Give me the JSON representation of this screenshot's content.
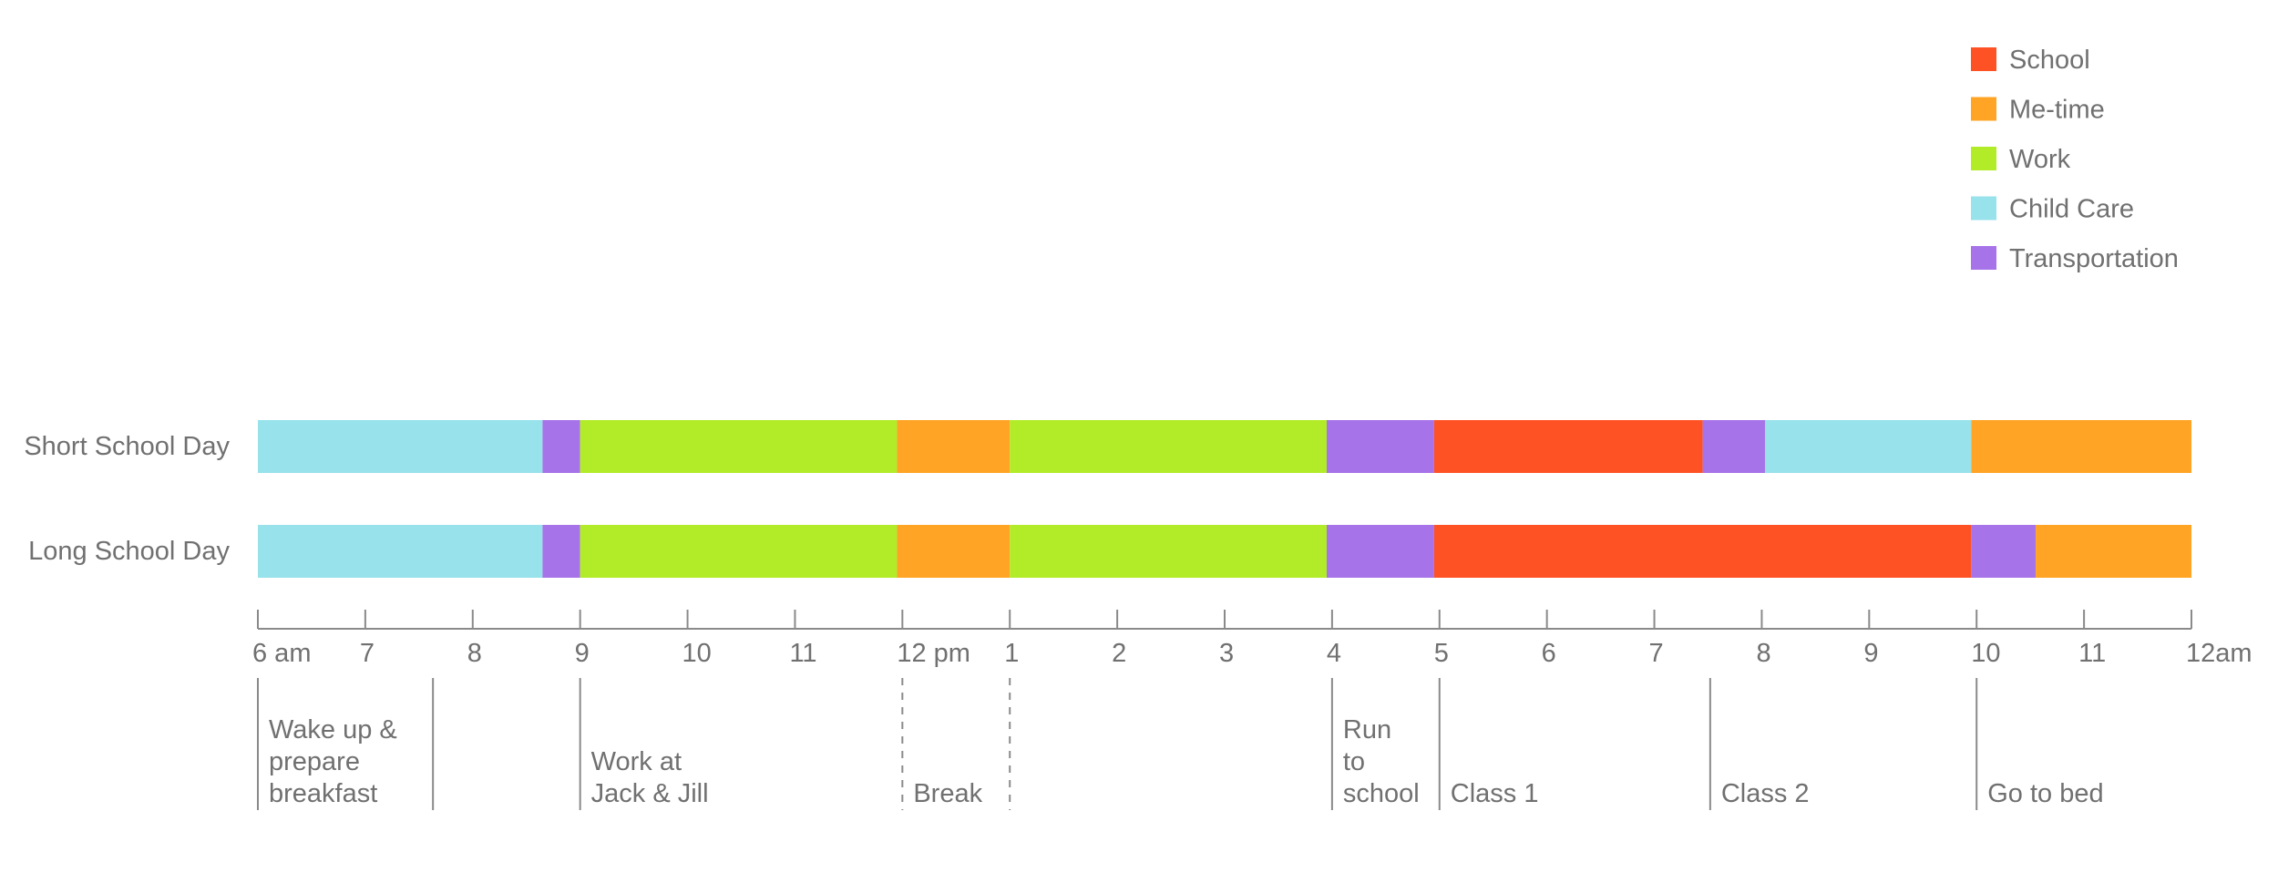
{
  "chart_data": {
    "type": "bar",
    "subtype": "stacked-timeline",
    "title": "",
    "xlabel": "",
    "ylabel": "",
    "x_unit": "hours (clock time)",
    "xlim": [
      6,
      24
    ],
    "ticks": [
      {
        "value": 6,
        "label": "6 am"
      },
      {
        "value": 7,
        "label": "7"
      },
      {
        "value": 8,
        "label": "8"
      },
      {
        "value": 9,
        "label": "9"
      },
      {
        "value": 10,
        "label": "10"
      },
      {
        "value": 11,
        "label": "11"
      },
      {
        "value": 12,
        "label": "12 pm"
      },
      {
        "value": 13,
        "label": "1"
      },
      {
        "value": 14,
        "label": "2"
      },
      {
        "value": 15,
        "label": "3"
      },
      {
        "value": 16,
        "label": "4"
      },
      {
        "value": 17,
        "label": "5"
      },
      {
        "value": 18,
        "label": "6"
      },
      {
        "value": 19,
        "label": "7"
      },
      {
        "value": 20,
        "label": "8"
      },
      {
        "value": 21,
        "label": "9"
      },
      {
        "value": 22,
        "label": "10"
      },
      {
        "value": 23,
        "label": "11"
      },
      {
        "value": 24,
        "label": "12am"
      }
    ],
    "categories_legend": [
      {
        "name": "School",
        "color": "#FF5224"
      },
      {
        "name": "Me-time",
        "color": "#FFA424"
      },
      {
        "name": "Work",
        "color": "#B2EB28"
      },
      {
        "name": "Child Care",
        "color": "#97E2EB"
      },
      {
        "name": "Transportation",
        "color": "#A673E8"
      }
    ],
    "legend_position": "top-right",
    "rows": [
      {
        "label": "Short School Day",
        "segments": [
          {
            "start": 6.0,
            "end": 8.65,
            "category": "Child Care"
          },
          {
            "start": 8.65,
            "end": 9.0,
            "category": "Transportation"
          },
          {
            "start": 9.0,
            "end": 11.95,
            "category": "Work"
          },
          {
            "start": 11.95,
            "end": 13.0,
            "category": "Me-time"
          },
          {
            "start": 13.0,
            "end": 15.95,
            "category": "Work"
          },
          {
            "start": 15.95,
            "end": 16.95,
            "category": "Transportation"
          },
          {
            "start": 16.95,
            "end": 19.45,
            "category": "School"
          },
          {
            "start": 19.45,
            "end": 20.03,
            "category": "Transportation"
          },
          {
            "start": 20.03,
            "end": 21.95,
            "category": "Child Care"
          },
          {
            "start": 21.95,
            "end": 24.0,
            "category": "Me-time"
          }
        ]
      },
      {
        "label": "Long School Day",
        "segments": [
          {
            "start": 6.0,
            "end": 8.65,
            "category": "Child Care"
          },
          {
            "start": 8.65,
            "end": 9.0,
            "category": "Transportation"
          },
          {
            "start": 9.0,
            "end": 11.95,
            "category": "Work"
          },
          {
            "start": 11.95,
            "end": 13.0,
            "category": "Me-time"
          },
          {
            "start": 13.0,
            "end": 15.95,
            "category": "Work"
          },
          {
            "start": 15.95,
            "end": 16.95,
            "category": "Transportation"
          },
          {
            "start": 16.95,
            "end": 21.95,
            "category": "School"
          },
          {
            "start": 21.95,
            "end": 22.55,
            "category": "Transportation"
          },
          {
            "start": 22.55,
            "end": 24.0,
            "category": "Me-time"
          }
        ]
      }
    ],
    "annotations": [
      {
        "at": 6.0,
        "lines": [
          "Wake up &",
          "prepare",
          "breakfast"
        ],
        "dashed": false
      },
      {
        "at": 7.63,
        "lines": [],
        "dashed": false
      },
      {
        "at": 9.0,
        "lines": [
          "Work at",
          "Jack & Jill"
        ],
        "dashed": false
      },
      {
        "at": 12.0,
        "lines": [
          "Break"
        ],
        "dashed": true
      },
      {
        "at": 13.0,
        "lines": [],
        "dashed": true
      },
      {
        "at": 16.0,
        "lines": [
          "Run",
          "to",
          "school"
        ],
        "dashed": false
      },
      {
        "at": 17.0,
        "lines": [
          "Class 1"
        ],
        "dashed": false
      },
      {
        "at": 19.52,
        "lines": [
          "Class 2"
        ],
        "dashed": false
      },
      {
        "at": 22.0,
        "lines": [
          "Go to bed"
        ],
        "dashed": false
      }
    ]
  }
}
